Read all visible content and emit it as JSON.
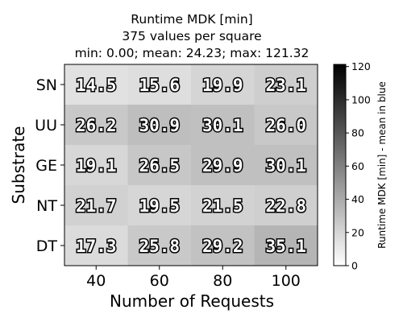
{
  "chart_data": {
    "type": "heatmap",
    "title_lines": [
      "Runtime MDK [min]",
      "375 values per square",
      "min: 0.00; mean: 24.23; max: 121.32"
    ],
    "xlabel": "Number of Requests",
    "ylabel": "Substrate",
    "x_categories": [
      "40",
      "60",
      "80",
      "100"
    ],
    "y_categories": [
      "SN",
      "UU",
      "GE",
      "NT",
      "DT"
    ],
    "values": [
      [
        "14.5",
        "15.6",
        "19.9",
        "23.1"
      ],
      [
        "26.2",
        "30.9",
        "30.1",
        "26.0"
      ],
      [
        "19.1",
        "26.5",
        "29.9",
        "30.1"
      ],
      [
        "21.7",
        "19.5",
        "21.5",
        "22.8"
      ],
      [
        "17.3",
        "25.8",
        "29.2",
        "35.1"
      ]
    ],
    "colorbar": {
      "label": "Runtime MDK [min] - mean in blue",
      "range": [
        0,
        121.32
      ],
      "ticks": [
        "0",
        "20",
        "40",
        "60",
        "80",
        "100",
        "120"
      ],
      "colormap": "Greys"
    }
  }
}
